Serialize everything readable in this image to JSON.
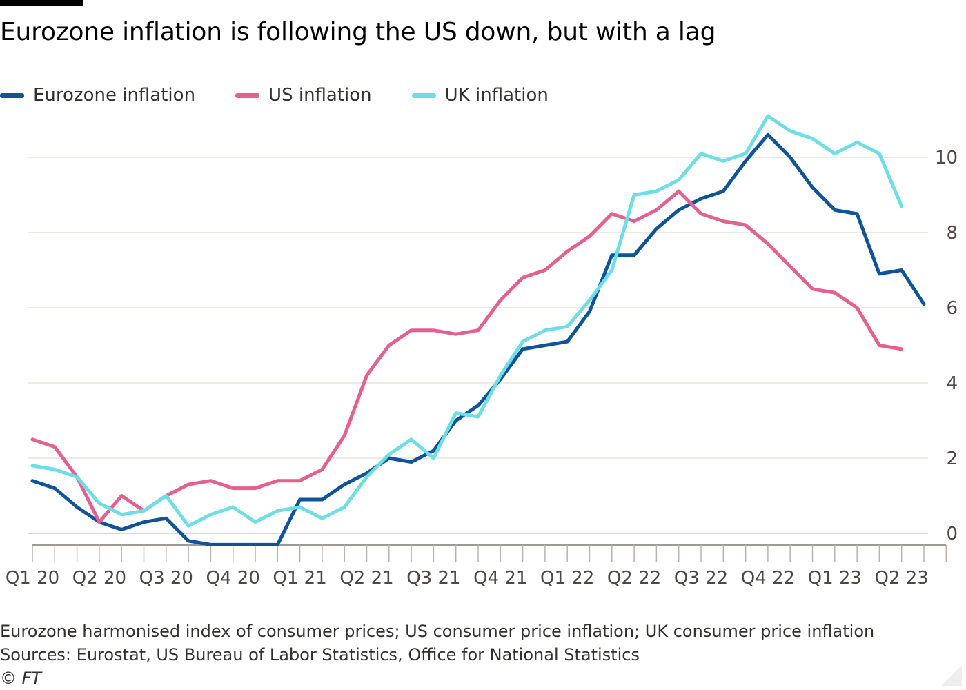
{
  "header": {
    "title": "Eurozone inflation is following the US down, but with a lag"
  },
  "legend": [
    {
      "label": "Eurozone inflation",
      "color": "#0f5499"
    },
    {
      "label": "US inflation",
      "color": "#e3608f"
    },
    {
      "label": "UK inflation",
      "color": "#6fdde5"
    }
  ],
  "chart_data": {
    "type": "line",
    "title": "Eurozone inflation is following the US down, but with a lag",
    "x": [
      "2020-01",
      "2020-02",
      "2020-03",
      "2020-04",
      "2020-05",
      "2020-06",
      "2020-07",
      "2020-08",
      "2020-09",
      "2020-10",
      "2020-11",
      "2020-12",
      "2021-01",
      "2021-02",
      "2021-03",
      "2021-04",
      "2021-05",
      "2021-06",
      "2021-07",
      "2021-08",
      "2021-09",
      "2021-10",
      "2021-11",
      "2021-12",
      "2022-01",
      "2022-02",
      "2022-03",
      "2022-04",
      "2022-05",
      "2022-06",
      "2022-07",
      "2022-08",
      "2022-09",
      "2022-10",
      "2022-11",
      "2022-12",
      "2023-01",
      "2023-02",
      "2023-03",
      "2023-04",
      "2023-05",
      "2023-06"
    ],
    "x_tick_labels": [
      "Q1 20",
      "Q2 20",
      "Q3 20",
      "Q4 20",
      "Q1 21",
      "Q2 21",
      "Q3 21",
      "Q4 21",
      "Q1 22",
      "Q2 22",
      "Q3 22",
      "Q4 22",
      "Q1 23",
      "Q2 23"
    ],
    "series": [
      {
        "name": "Eurozone inflation",
        "color": "#0f5499",
        "values": [
          1.4,
          1.2,
          0.7,
          0.3,
          0.1,
          0.3,
          0.4,
          -0.2,
          -0.3,
          -0.3,
          -0.3,
          -0.3,
          0.9,
          0.9,
          1.3,
          1.6,
          2.0,
          1.9,
          2.2,
          3.0,
          3.4,
          4.1,
          4.9,
          5.0,
          5.1,
          5.9,
          7.4,
          7.4,
          8.1,
          8.6,
          8.9,
          9.1,
          9.9,
          10.6,
          10.0,
          9.2,
          8.6,
          8.5,
          6.9,
          7.0,
          6.1,
          null
        ]
      },
      {
        "name": "US inflation",
        "color": "#e3608f",
        "values": [
          2.5,
          2.3,
          1.5,
          0.3,
          1.0,
          0.6,
          1.0,
          1.3,
          1.4,
          1.2,
          1.2,
          1.4,
          1.4,
          1.7,
          2.6,
          4.2,
          5.0,
          5.4,
          5.4,
          5.3,
          5.4,
          6.2,
          6.8,
          7.0,
          7.5,
          7.9,
          8.5,
          8.3,
          8.6,
          9.1,
          8.5,
          8.3,
          8.2,
          7.7,
          7.1,
          6.5,
          6.4,
          6.0,
          5.0,
          4.9,
          null,
          null
        ]
      },
      {
        "name": "UK inflation",
        "color": "#6fdde5",
        "values": [
          1.8,
          1.7,
          1.5,
          0.8,
          0.5,
          0.6,
          1.0,
          0.2,
          0.5,
          0.7,
          0.3,
          0.6,
          0.7,
          0.4,
          0.7,
          1.5,
          2.1,
          2.5,
          2.0,
          3.2,
          3.1,
          4.2,
          5.1,
          5.4,
          5.5,
          6.2,
          7.0,
          9.0,
          9.1,
          9.4,
          10.1,
          9.9,
          10.1,
          11.1,
          10.7,
          10.5,
          10.1,
          10.4,
          10.1,
          8.7,
          null,
          null
        ]
      }
    ],
    "y_ticks": [
      0,
      2,
      4,
      6,
      8,
      10
    ],
    "ylim": [
      -0.3,
      11.1
    ],
    "xlabel": "",
    "ylabel": "",
    "grid": true,
    "y_axis_side": "right",
    "legend_position": "top-left"
  },
  "footer": {
    "note": "Eurozone harmonised index of consumer prices; US consumer price inflation; UK consumer price inflation",
    "sources": "Sources: Eurostat, US Bureau of Labor Statistics, Office for National Statistics",
    "credit": "© FT"
  }
}
